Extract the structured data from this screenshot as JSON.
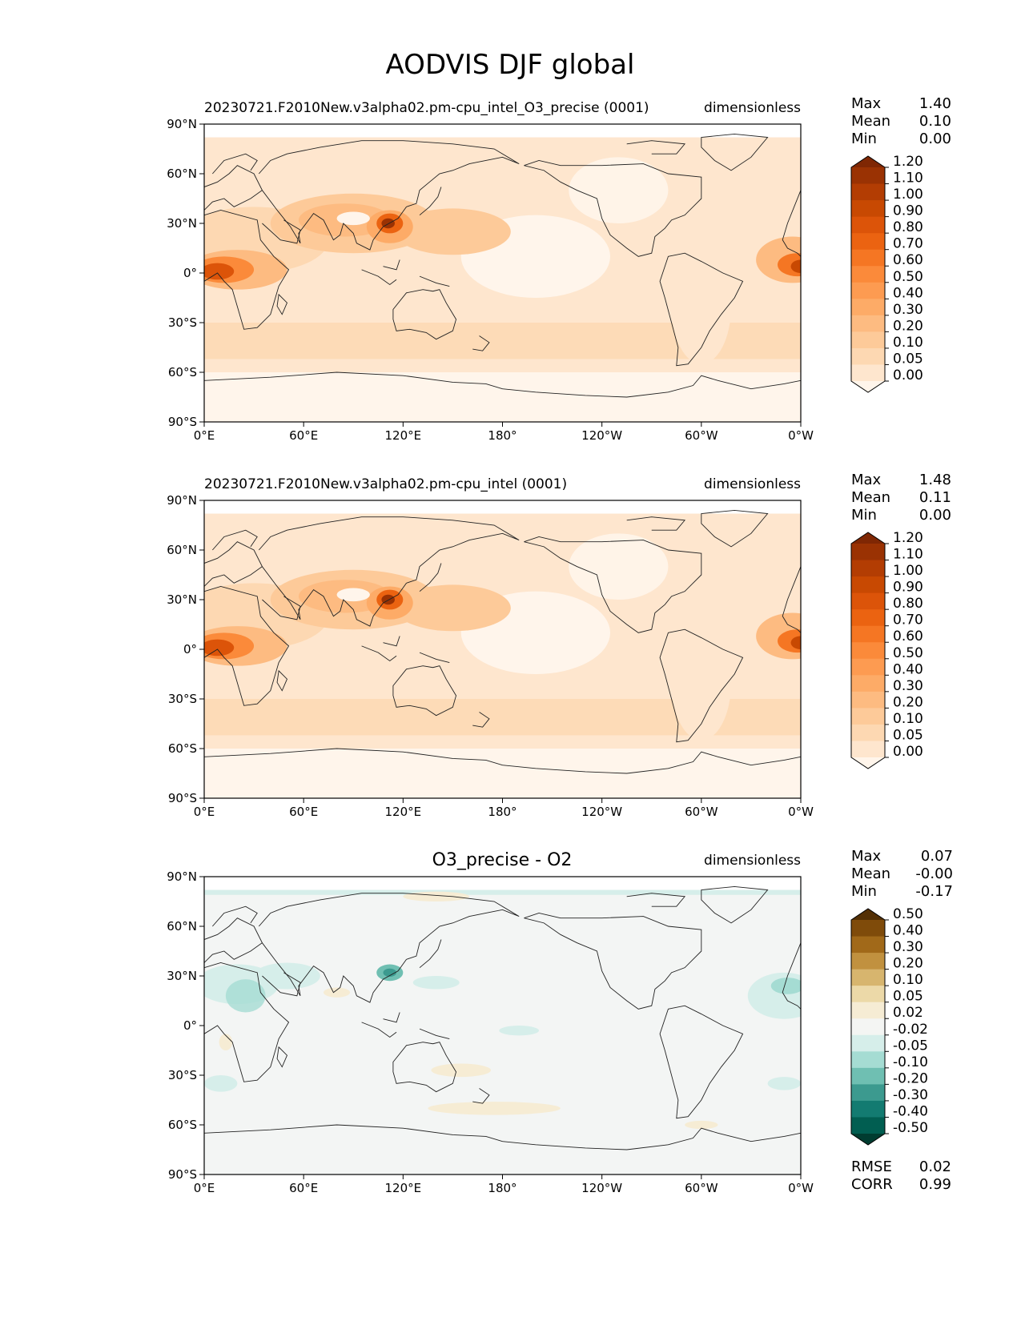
{
  "figure_title": "AODVIS DJF global",
  "colors": {
    "test_scale": [
      "#7f2704",
      "#9a3203",
      "#b33d03",
      "#c84902",
      "#dc5409",
      "#eb6311",
      "#f57623",
      "#fb8a3a",
      "#fd9b51",
      "#fdab67",
      "#fdbb81",
      "#fdca99",
      "#fdd8b2",
      "#fee6ce",
      "#fff5eb"
    ],
    "diff_scale": [
      "#543005",
      "#7f4b0a",
      "#a16919",
      "#c1913f",
      "#d7b56e",
      "#ecd9a8",
      "#f6ecd4",
      "#f4f5f3",
      "#d6eeea",
      "#a5dcd3",
      "#6fbfb2",
      "#3c9a8f",
      "#137b71",
      "#015e51",
      "#003c30"
    ],
    "ocean_diff_bg": "#f3f5f4",
    "land_bg_test": "#fee6ce"
  },
  "chart_data": [
    {
      "type": "heatmap",
      "panel": "test",
      "left_title": "20230721.F2010New.v3alpha02.pm-cpu_intel_O3_precise (0001)",
      "center_title": "",
      "right_title": "dimensionless",
      "x_ticks": [
        "0°E",
        "60°E",
        "120°E",
        "180°",
        "120°W",
        "60°W",
        "0°W"
      ],
      "y_ticks": [
        "90°N",
        "60°N",
        "30°N",
        "0°",
        "30°S",
        "60°S",
        "90°S"
      ],
      "xlim": [
        0,
        360
      ],
      "ylim": [
        -90,
        90
      ],
      "stats": {
        "labels": [
          "Max",
          "Mean",
          "Min"
        ],
        "values": [
          "1.40",
          "0.10",
          "0.00"
        ]
      },
      "colorbar": {
        "extend": "both",
        "levels": [
          "0.00",
          "0.05",
          "0.10",
          "0.20",
          "0.30",
          "0.40",
          "0.50",
          "0.60",
          "0.70",
          "0.80",
          "0.90",
          "1.00",
          "1.10",
          "1.20"
        ]
      }
    },
    {
      "type": "heatmap",
      "panel": "reference",
      "left_title": "20230721.F2010New.v3alpha02.pm-cpu_intel (0001)",
      "center_title": "",
      "right_title": "dimensionless",
      "x_ticks": [
        "0°E",
        "60°E",
        "120°E",
        "180°",
        "120°W",
        "60°W",
        "0°W"
      ],
      "y_ticks": [
        "90°N",
        "60°N",
        "30°N",
        "0°",
        "30°S",
        "60°S",
        "90°S"
      ],
      "xlim": [
        0,
        360
      ],
      "ylim": [
        -90,
        90
      ],
      "stats": {
        "labels": [
          "Max",
          "Mean",
          "Min"
        ],
        "values": [
          "1.48",
          "0.11",
          "0.00"
        ]
      },
      "colorbar": {
        "extend": "both",
        "levels": [
          "0.00",
          "0.05",
          "0.10",
          "0.20",
          "0.30",
          "0.40",
          "0.50",
          "0.60",
          "0.70",
          "0.80",
          "0.90",
          "1.00",
          "1.10",
          "1.20"
        ]
      }
    },
    {
      "type": "heatmap",
      "panel": "difference",
      "left_title": "",
      "center_title": "O3_precise - O2",
      "right_title": "dimensionless",
      "x_ticks": [
        "0°E",
        "60°E",
        "120°E",
        "180°",
        "120°W",
        "60°W",
        "0°W"
      ],
      "y_ticks": [
        "90°N",
        "60°N",
        "30°N",
        "0°",
        "30°S",
        "60°S",
        "90°S"
      ],
      "xlim": [
        0,
        360
      ],
      "ylim": [
        -90,
        90
      ],
      "stats": {
        "labels": [
          "Max",
          "Mean",
          "Min"
        ],
        "values": [
          "0.07",
          "-0.00",
          "-0.17"
        ]
      },
      "colorbar": {
        "extend": "both",
        "levels": [
          "-0.50",
          "-0.40",
          "-0.30",
          "-0.20",
          "-0.10",
          "-0.05",
          "-0.02",
          "0.02",
          "0.05",
          "0.10",
          "0.20",
          "0.30",
          "0.40",
          "0.50"
        ]
      },
      "metrics": {
        "labels": [
          "RMSE",
          "CORR"
        ],
        "values": [
          "0.02",
          "0.99"
        ]
      }
    }
  ]
}
